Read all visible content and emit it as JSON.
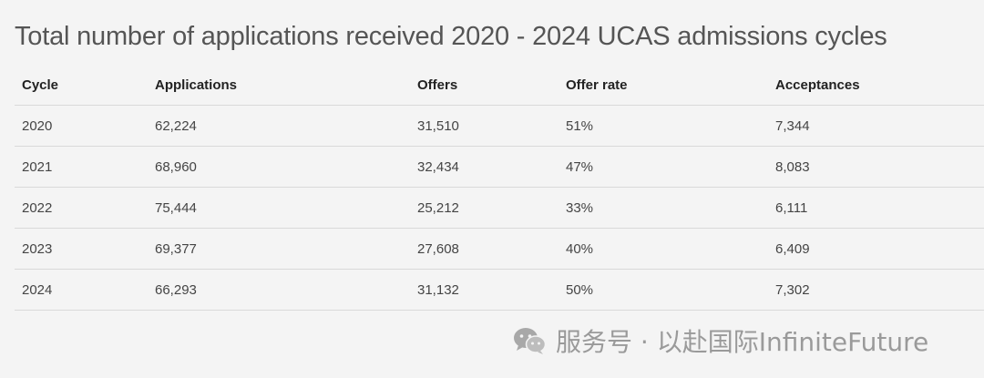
{
  "title": "Total number of applications received 2020 - 2024 UCAS admissions cycles",
  "table": {
    "headers": [
      "Cycle",
      "Applications",
      "Offers",
      "Offer rate",
      "Acceptances"
    ],
    "rows": [
      [
        "2020",
        "62,224",
        "31,510",
        "51%",
        "7,344"
      ],
      [
        "2021",
        "68,960",
        "32,434",
        "47%",
        "8,083"
      ],
      [
        "2022",
        "75,444",
        "25,212",
        "33%",
        "6,111"
      ],
      [
        "2023",
        "69,377",
        "27,608",
        "40%",
        "6,409"
      ],
      [
        "2024",
        "66,293",
        "31,132",
        "50%",
        "7,302"
      ]
    ]
  },
  "watermark": {
    "icon": "wechat-icon",
    "text": "服务号 · 以赴国际InfiniteFuture"
  }
}
